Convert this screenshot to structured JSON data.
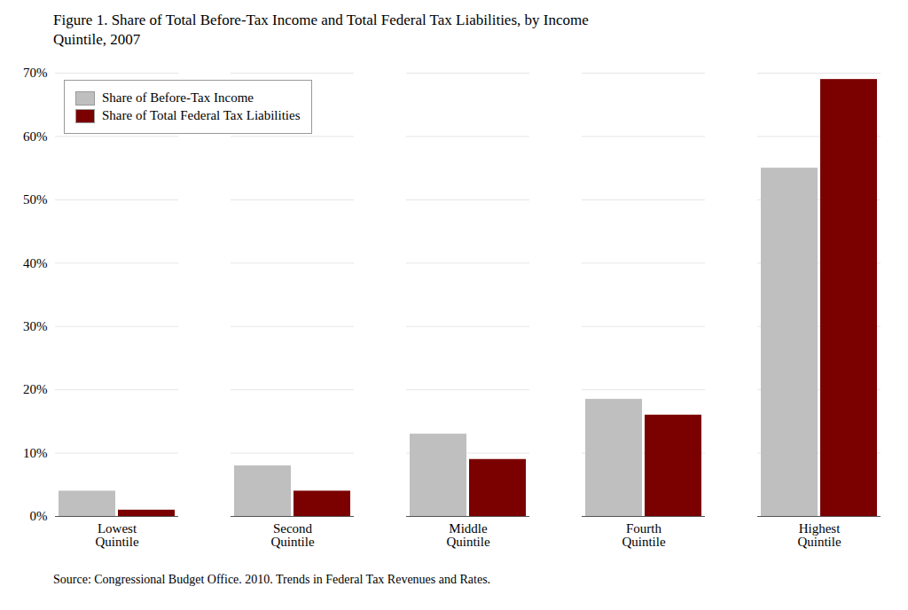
{
  "chart_data": {
    "type": "bar",
    "title": "Figure 1. Share of Total Before-Tax Income and Total Federal Tax Liabilities, by Income\nQuintile, 2007",
    "categories": [
      "Lowest\nQuintile",
      "Second\nQuintile",
      "Middle\nQuintile",
      "Fourth\nQuintile",
      "Highest\nQuintile"
    ],
    "series": [
      {
        "name": "Share of Before-Tax Income",
        "color": "#BFBFBF",
        "values": [
          4.0,
          8.0,
          13.0,
          18.5,
          55.0
        ]
      },
      {
        "name": "Share of Total Federal Tax Liabilities",
        "color": "#7B0000",
        "values": [
          1.0,
          4.0,
          9.0,
          16.0,
          69.0
        ]
      }
    ],
    "ylim": [
      0,
      70
    ],
    "yticks": [
      {
        "value": 0,
        "label": "0%"
      },
      {
        "value": 10,
        "label": "10%"
      },
      {
        "value": 20,
        "label": "20%"
      },
      {
        "value": 30,
        "label": "30%"
      },
      {
        "value": 40,
        "label": "40%"
      },
      {
        "value": 50,
        "label": "50%"
      },
      {
        "value": 60,
        "label": "60%"
      },
      {
        "value": 70,
        "label": "70%"
      }
    ],
    "grid": true,
    "legend": "upper left",
    "annotations": [
      "Source: Congressional Budget Office. 2010. Trends in Federal Tax Revenues and Rates."
    ]
  }
}
